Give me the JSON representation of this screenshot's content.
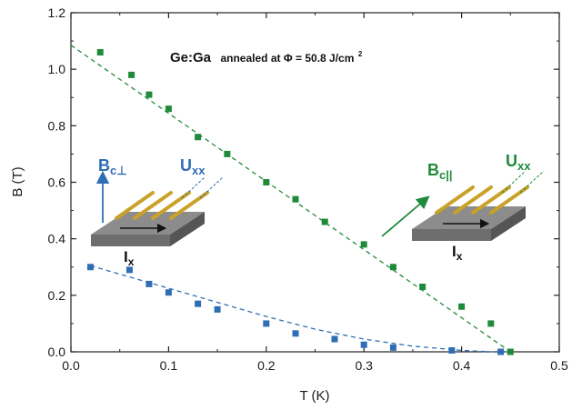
{
  "chart_data": {
    "type": "scatter",
    "xlabel": "T (K)",
    "ylabel": "B (T)",
    "xlim": [
      0.0,
      0.5
    ],
    "ylim": [
      0.0,
      1.2
    ],
    "x_ticks": [
      "0.0",
      "0.1",
      "0.2",
      "0.3",
      "0.4",
      "0.5"
    ],
    "y_ticks": [
      "0.0",
      "0.2",
      "0.4",
      "0.6",
      "0.8",
      "1.0",
      "1.2"
    ],
    "grid": false,
    "annotation": {
      "material": "Ge:Ga",
      "condition": "annealed at Φ = 50.8 J/cm",
      "superscript": "2"
    },
    "insets": {
      "perpendicular": {
        "field": "B",
        "field_sub": "c⊥",
        "voltage": "U",
        "voltage_sub": "xx",
        "current": "I",
        "current_sub": "x"
      },
      "parallel": {
        "field": "B",
        "field_sub": "c||",
        "voltage": "U",
        "voltage_sub": "xx",
        "current": "I",
        "current_sub": "x"
      }
    },
    "series": [
      {
        "color": "#1f8a3a",
        "marker": "square",
        "x": [
          0.03,
          0.062,
          0.08,
          0.1,
          0.13,
          0.16,
          0.2,
          0.23,
          0.26,
          0.3,
          0.33,
          0.36,
          0.4,
          0.43,
          0.45
        ],
        "y": [
          1.06,
          0.98,
          0.91,
          0.86,
          0.76,
          0.7,
          0.6,
          0.54,
          0.46,
          0.38,
          0.3,
          0.23,
          0.16,
          0.1,
          0.0
        ]
      },
      {
        "color": "#2f6db5",
        "marker": "square",
        "x": [
          0.02,
          0.06,
          0.08,
          0.1,
          0.13,
          0.15,
          0.2,
          0.23,
          0.27,
          0.3,
          0.33,
          0.39,
          0.44
        ],
        "y": [
          0.3,
          0.29,
          0.24,
          0.21,
          0.17,
          0.15,
          0.1,
          0.065,
          0.045,
          0.025,
          0.015,
          0.005,
          0.0
        ]
      }
    ],
    "fits": [
      {
        "color": "#1f8a3a",
        "style": "dashed",
        "x": [
          0.0,
          0.45
        ],
        "y": [
          1.085,
          0.0
        ]
      },
      {
        "color": "#2f6db5",
        "style": "dashed",
        "x": [
          0.02,
          0.06,
          0.1,
          0.15,
          0.2,
          0.25,
          0.3,
          0.35,
          0.4,
          0.43,
          0.45
        ],
        "y": [
          0.305,
          0.265,
          0.225,
          0.175,
          0.125,
          0.08,
          0.045,
          0.02,
          0.005,
          0.0,
          0.0
        ]
      }
    ]
  }
}
